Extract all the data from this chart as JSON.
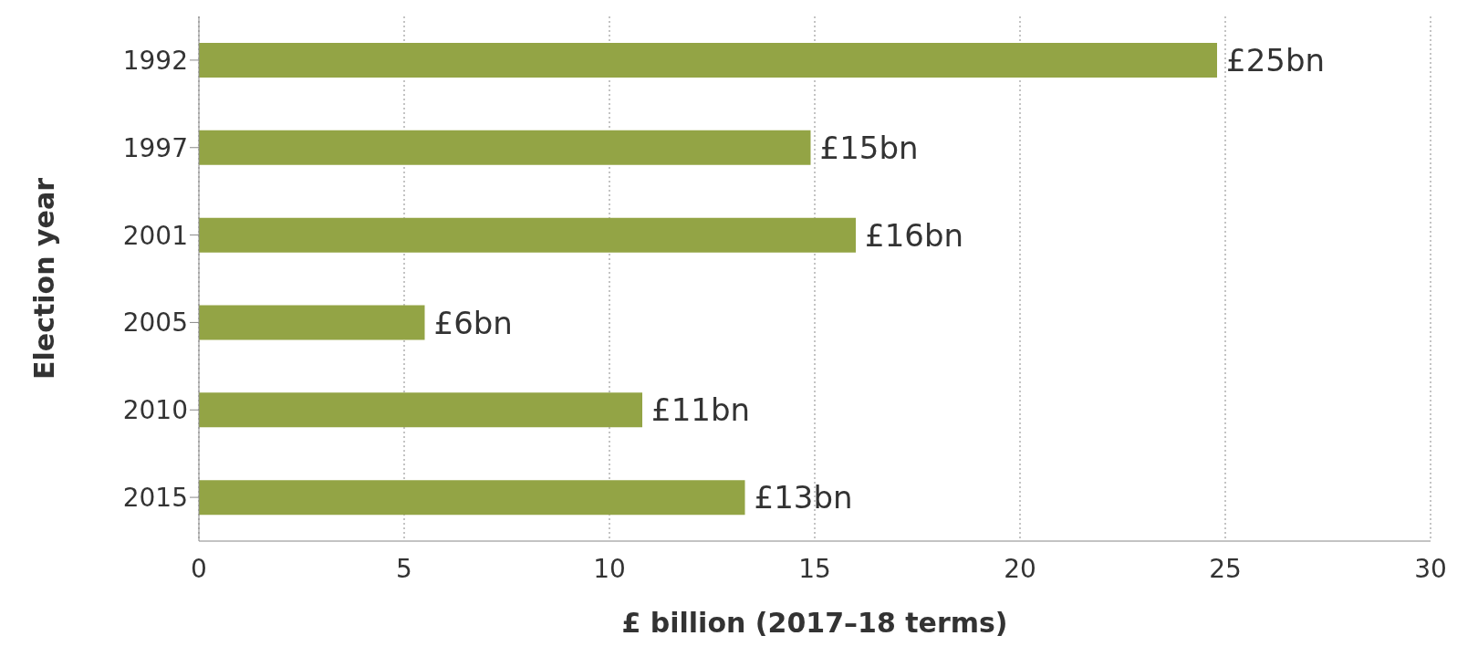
{
  "chart_data": {
    "type": "bar",
    "orientation": "horizontal",
    "xlabel": "£ billion (2017–18 terms)",
    "ylabel": "Election year",
    "categories": [
      "1992",
      "1997",
      "2001",
      "2005",
      "2010",
      "2015"
    ],
    "values": [
      24.8,
      14.9,
      16.0,
      5.5,
      10.8,
      13.3
    ],
    "value_labels": [
      "£25bn",
      "£15bn",
      "£16bn",
      "£6bn",
      "£11bn",
      "£13bn"
    ],
    "color": "#93a445",
    "xlim": [
      0,
      30
    ],
    "xticks": [
      0,
      5,
      10,
      15,
      20,
      25,
      30
    ],
    "grid": "x"
  }
}
